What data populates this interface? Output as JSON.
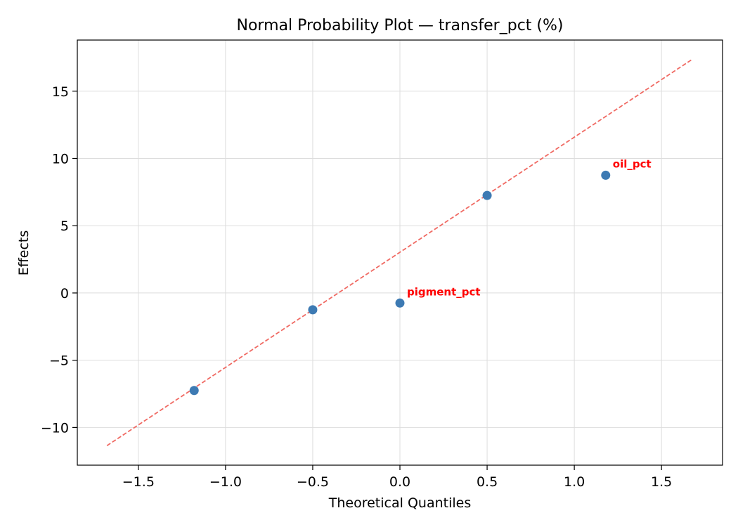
{
  "chart_data": {
    "type": "scatter",
    "title": "Normal Probability Plot — transfer_pct (%)",
    "xlabel": "Theoretical Quantiles",
    "ylabel": "Effects",
    "xlim": [
      -1.85,
      1.85
    ],
    "ylim": [
      -12.8,
      18.8
    ],
    "xticks": [
      -1.5,
      -1.0,
      -0.5,
      0.0,
      0.5,
      1.0,
      1.5
    ],
    "xtick_labels": [
      "−1.5",
      "−1.0",
      "−0.5",
      "0.0",
      "0.5",
      "1.0",
      "1.5"
    ],
    "yticks": [
      -10,
      -5,
      0,
      5,
      10,
      15
    ],
    "ytick_labels": [
      "−10",
      "−5",
      "0",
      "5",
      "10",
      "15"
    ],
    "grid": true,
    "points": [
      {
        "x": -1.18,
        "y": -7.25
      },
      {
        "x": -0.5,
        "y": -1.25
      },
      {
        "x": 0.0,
        "y": -0.75
      },
      {
        "x": 0.5,
        "y": 7.25
      },
      {
        "x": 1.18,
        "y": 8.75
      }
    ],
    "reference_line": {
      "x": [
        -1.68,
        1.68
      ],
      "y": [
        -11.35,
        17.4
      ],
      "style": "dashed"
    },
    "annotations": [
      {
        "text": "pigment_pct",
        "x": 0.0,
        "y": -0.75
      },
      {
        "text": "oil_pct",
        "x": 1.18,
        "y": 8.75
      }
    ],
    "colors": {
      "points": "#3d7ab3",
      "reference_line": "#f06a63",
      "annotation": "#ff0000",
      "grid": "#dddddd",
      "axes": "#000000"
    }
  }
}
